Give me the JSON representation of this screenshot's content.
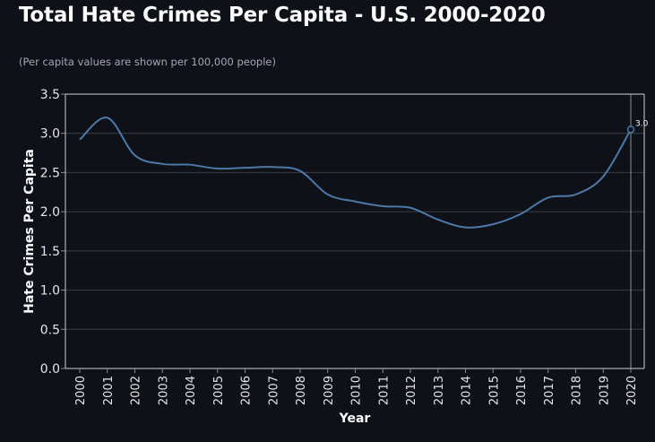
{
  "page": {
    "title": "Total Hate Crimes Per Capita - U.S. 2000-2020",
    "subtitle": "(Per capita values are shown per 100,000 people)"
  },
  "chart_data": {
    "type": "line",
    "title": "Total Hate Crimes Per Capita - U.S. 2000-2020",
    "subtitle": "(Per capita values are shown per 100,000 people)",
    "xlabel": "Year",
    "ylabel": "Hate Crimes Per Capita",
    "x": [
      "2000",
      "2001",
      "2002",
      "2003",
      "2004",
      "2005",
      "2006",
      "2007",
      "2008",
      "2009",
      "2010",
      "2011",
      "2012",
      "2013",
      "2014",
      "2015",
      "2016",
      "2017",
      "2018",
      "2019",
      "2020"
    ],
    "series": [
      {
        "values": [
          2.92,
          3.2,
          2.72,
          2.61,
          2.6,
          2.55,
          2.56,
          2.57,
          2.52,
          2.22,
          2.13,
          2.07,
          2.05,
          1.9,
          1.8,
          1.84,
          1.97,
          2.18,
          2.22,
          2.45,
          3.05
        ],
        "color": "#4c78a8"
      }
    ],
    "ylim": [
      0,
      3.5
    ],
    "yticks": [
      "0.0",
      "0.5",
      "1.0",
      "1.5",
      "2.0",
      "2.5",
      "3.0",
      "3.5"
    ],
    "grid": true,
    "end_label": "3.0",
    "colors": {
      "background": "#0e1117",
      "line": "#4c78a8",
      "grid": "#3a3d47",
      "text": "#fafafa"
    }
  }
}
